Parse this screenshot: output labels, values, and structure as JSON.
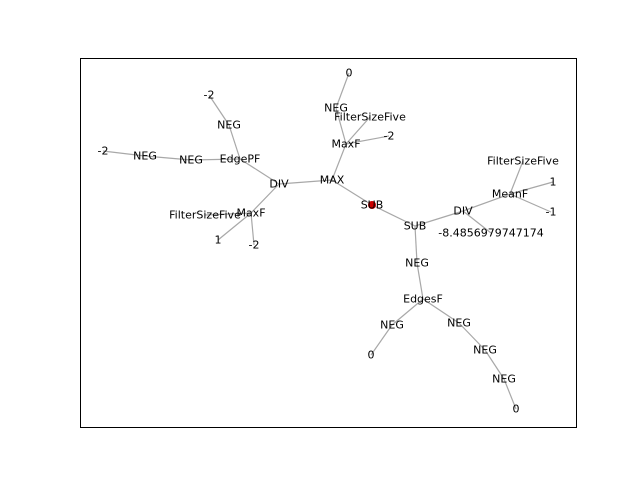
{
  "colors": {
    "edge": "#a8a8a8",
    "root": "#cc0000",
    "frame": "#000000"
  },
  "nodes": [
    {
      "id": "n0",
      "label": "SUB"
    },
    {
      "id": "n1",
      "label": "MAX"
    },
    {
      "id": "n2",
      "label": "DIV"
    },
    {
      "id": "n3",
      "label": "EdgePF"
    },
    {
      "id": "n4",
      "label": "NEG"
    },
    {
      "id": "n5",
      "label": "NEG"
    },
    {
      "id": "n6",
      "label": "-2"
    },
    {
      "id": "n7",
      "label": "NEG"
    },
    {
      "id": "n8",
      "label": "-2"
    },
    {
      "id": "n9",
      "label": "MaxF"
    },
    {
      "id": "n10",
      "label": "FilterSizeFive"
    },
    {
      "id": "n11",
      "label": "1"
    },
    {
      "id": "n12",
      "label": "-2"
    },
    {
      "id": "n13",
      "label": "MaxF"
    },
    {
      "id": "n14",
      "label": "NEG"
    },
    {
      "id": "n15",
      "label": "0"
    },
    {
      "id": "n16",
      "label": "FilterSizeFive"
    },
    {
      "id": "n17",
      "label": "-2"
    },
    {
      "id": "n18",
      "label": "SUB"
    },
    {
      "id": "n19",
      "label": "DIV"
    },
    {
      "id": "n20",
      "label": "MeanF"
    },
    {
      "id": "n21",
      "label": "FilterSizeFive"
    },
    {
      "id": "n22",
      "label": "1"
    },
    {
      "id": "n23",
      "label": "-1"
    },
    {
      "id": "n24",
      "label": "-8.4856979747174"
    },
    {
      "id": "n25",
      "label": "NEG"
    },
    {
      "id": "n26",
      "label": "EdgesF"
    },
    {
      "id": "n27",
      "label": "NEG"
    },
    {
      "id": "n28",
      "label": "0"
    },
    {
      "id": "n29",
      "label": "NEG"
    },
    {
      "id": "n30",
      "label": "NEG"
    },
    {
      "id": "n31",
      "label": "NEG"
    },
    {
      "id": "n32",
      "label": "0"
    }
  ],
  "edges": [
    [
      "n0",
      "n1"
    ],
    [
      "n1",
      "n2"
    ],
    [
      "n2",
      "n3"
    ],
    [
      "n3",
      "n4"
    ],
    [
      "n4",
      "n5"
    ],
    [
      "n5",
      "n6"
    ],
    [
      "n3",
      "n7"
    ],
    [
      "n7",
      "n8"
    ],
    [
      "n2",
      "n9"
    ],
    [
      "n9",
      "n10"
    ],
    [
      "n9",
      "n11"
    ],
    [
      "n9",
      "n12"
    ],
    [
      "n1",
      "n13"
    ],
    [
      "n13",
      "n14"
    ],
    [
      "n14",
      "n15"
    ],
    [
      "n13",
      "n16"
    ],
    [
      "n13",
      "n17"
    ],
    [
      "n0",
      "n18"
    ],
    [
      "n18",
      "n19"
    ],
    [
      "n19",
      "n20"
    ],
    [
      "n20",
      "n21"
    ],
    [
      "n20",
      "n22"
    ],
    [
      "n20",
      "n23"
    ],
    [
      "n19",
      "n24"
    ],
    [
      "n18",
      "n25"
    ],
    [
      "n25",
      "n26"
    ],
    [
      "n26",
      "n27"
    ],
    [
      "n27",
      "n28"
    ],
    [
      "n26",
      "n29"
    ],
    [
      "n29",
      "n30"
    ],
    [
      "n30",
      "n31"
    ],
    [
      "n31",
      "n32"
    ]
  ]
}
